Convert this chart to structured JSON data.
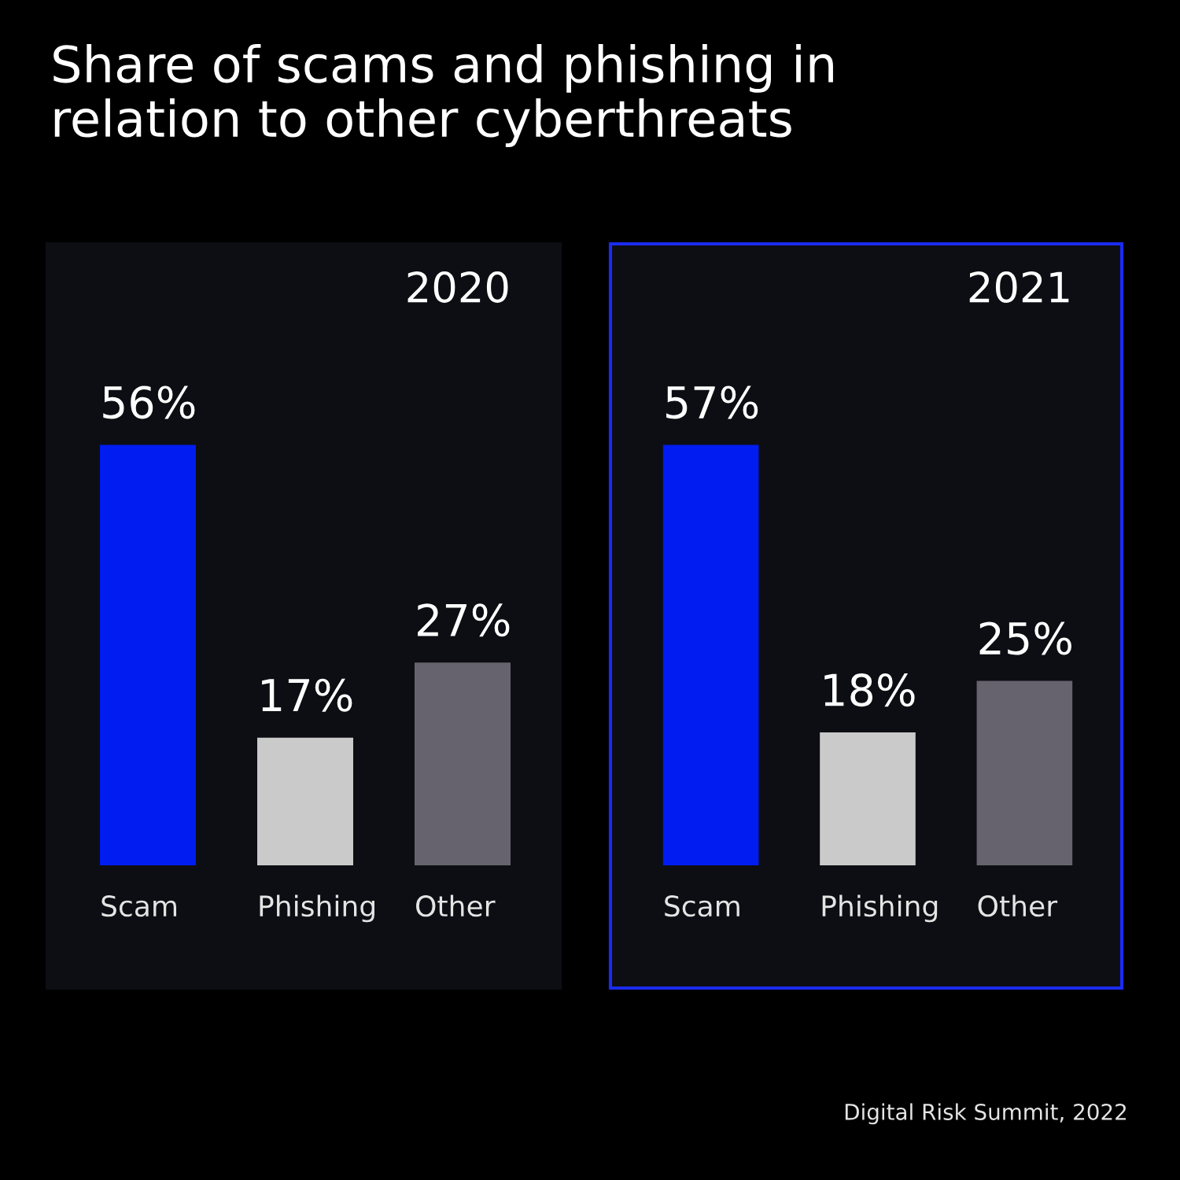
{
  "chart_data": [
    {
      "type": "other",
      "title": "Share of scams and phishing in\nrelation to other cyberthreats"
    },
    {
      "type": "bar",
      "title": "2020",
      "categories": [
        "Scam",
        "Phishing",
        "Other"
      ],
      "values": [
        56,
        17,
        27
      ],
      "colors": [
        "#001cf0",
        "#cacaca",
        "#66636e"
      ],
      "value_labels": [
        "56%",
        "17%",
        "27%"
      ],
      "tick_labels": "x"
    },
    {
      "type": "bar",
      "title": "2021",
      "categories": [
        "Scam",
        "Phishing",
        "Other"
      ],
      "values": [
        57,
        18,
        25
      ],
      "colors": [
        "#001cf0",
        "#cacaca",
        "#66636e"
      ],
      "value_labels": [
        "57%",
        "18%",
        "25%"
      ],
      "tick_labels": "x",
      "annotations": [
        "Digital Risk Summit, 2022"
      ]
    }
  ]
}
